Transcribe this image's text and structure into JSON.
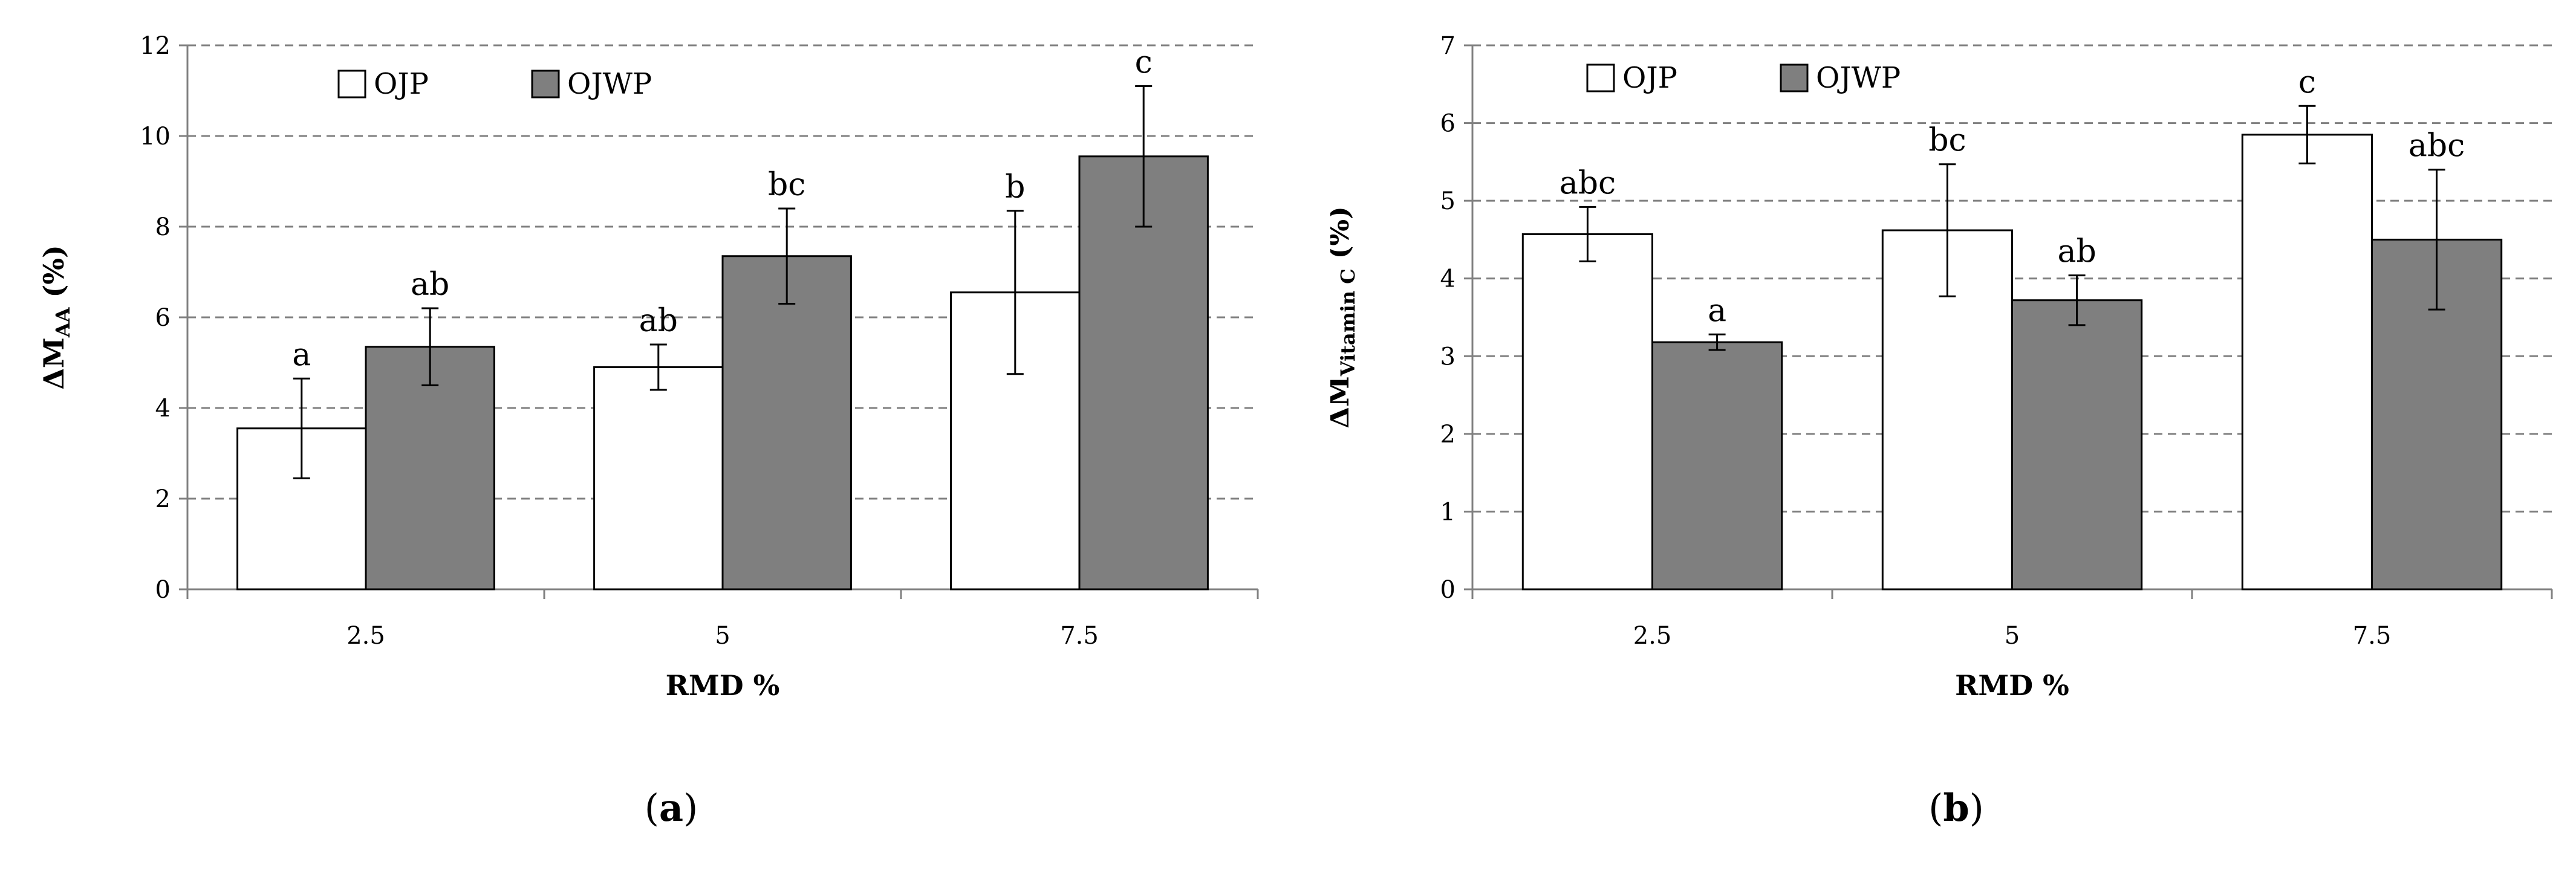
{
  "chart_data": [
    {
      "type": "bar",
      "categories": [
        "2.5",
        "5",
        "7.5"
      ],
      "series": [
        {
          "name": "OJP",
          "values": [
            3.55,
            4.9,
            6.55
          ],
          "errors": [
            1.1,
            0.5,
            1.8
          ],
          "labels": [
            "a",
            "ab",
            "b"
          ],
          "color": "#ffffff"
        },
        {
          "name": "OJWP",
          "values": [
            5.35,
            7.35,
            9.55
          ],
          "errors": [
            0.85,
            1.05,
            1.55
          ],
          "labels": [
            "ab",
            "bc",
            "c"
          ],
          "color": "#7f7f7f"
        }
      ],
      "xlabel": "RMD %",
      "ylabel_main": "ΔM",
      "ylabel_sub": "AA",
      "ylabel_suffix": " (%)",
      "ylim": [
        0,
        12
      ],
      "yticks": [
        0,
        2,
        4,
        6,
        8,
        10,
        12
      ],
      "grid": true,
      "legend": "top-left",
      "panel_label": "a"
    },
    {
      "type": "bar",
      "categories": [
        "2.5",
        "5",
        "7.5"
      ],
      "series": [
        {
          "name": "OJP",
          "values": [
            4.57,
            4.62,
            5.85
          ],
          "errors": [
            0.35,
            0.85,
            0.37
          ],
          "labels": [
            "abc",
            "bc",
            "c"
          ],
          "color": "#ffffff"
        },
        {
          "name": "OJWP",
          "values": [
            3.18,
            3.72,
            4.5
          ],
          "errors": [
            0.1,
            0.32,
            0.9
          ],
          "labels": [
            "a",
            "ab",
            "abc"
          ],
          "color": "#7f7f7f"
        }
      ],
      "xlabel": "RMD %",
      "ylabel_main": "ΔM",
      "ylabel_sub": "Vitamin C",
      "ylabel_suffix": " (%)",
      "ylim": [
        0,
        7
      ],
      "yticks": [
        0,
        1,
        2,
        3,
        4,
        5,
        6,
        7
      ],
      "grid": true,
      "legend": "top-left",
      "panel_label": "b"
    }
  ]
}
